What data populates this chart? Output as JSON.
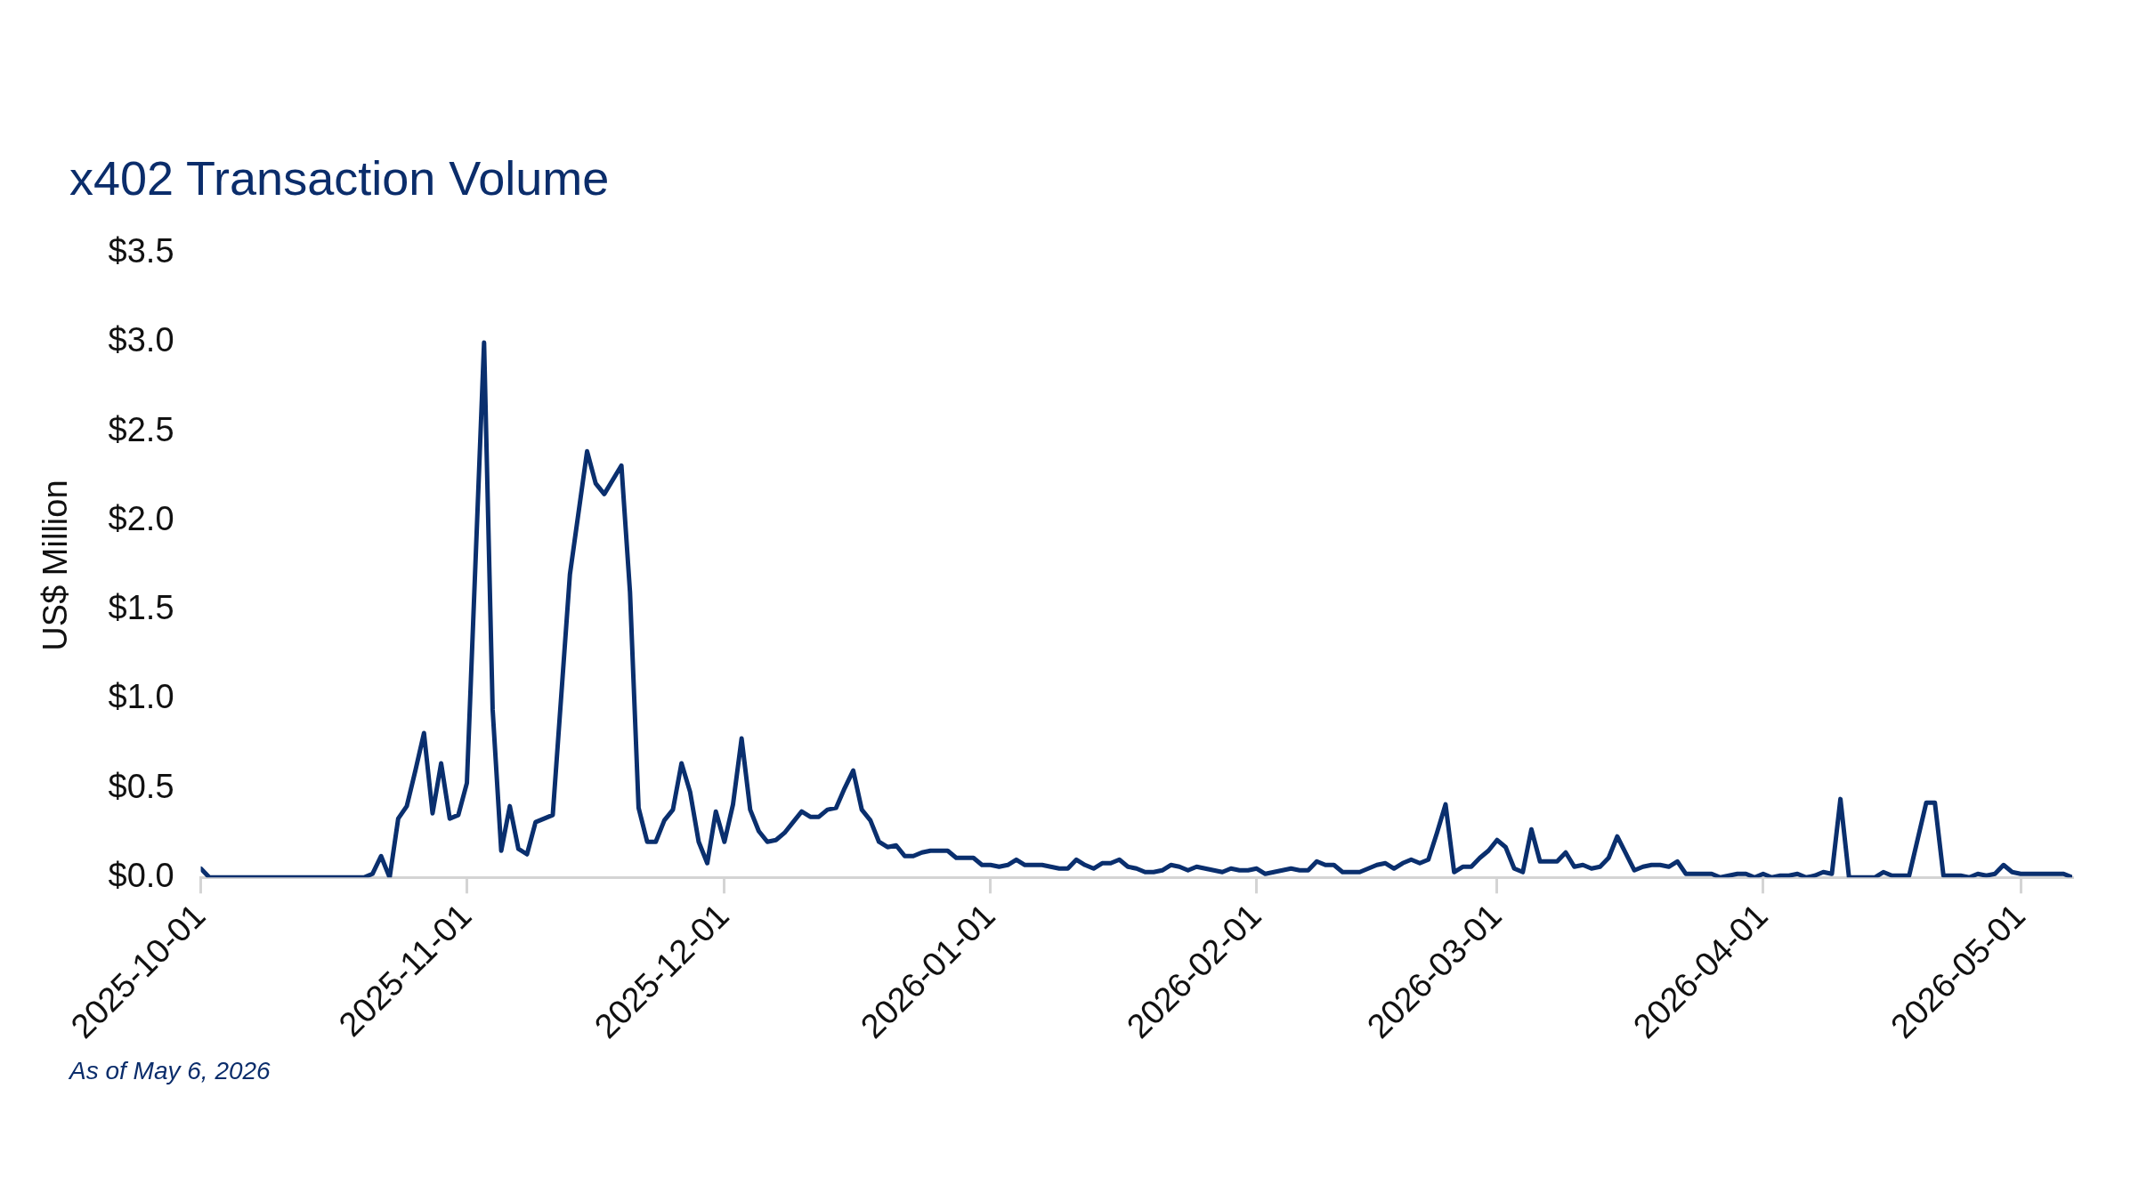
{
  "chart_data": {
    "type": "line",
    "title": "x402 Transaction Volume",
    "ylabel": "US$ Million",
    "marker": "none",
    "x": [
      "2025-10-01",
      "2025-10-02",
      "2025-10-20",
      "2025-10-21",
      "2025-10-22",
      "2025-10-23",
      "2025-10-24",
      "2025-10-25",
      "2025-10-26",
      "2025-10-27",
      "2025-10-28",
      "2025-10-29",
      "2025-10-30",
      "2025-10-31",
      "2025-11-01",
      "2025-11-03",
      "2025-11-04",
      "2025-11-05",
      "2025-11-06",
      "2025-11-07",
      "2025-11-08",
      "2025-11-09",
      "2025-11-10",
      "2025-11-11",
      "2025-11-13",
      "2025-11-15",
      "2025-11-16",
      "2025-11-17",
      "2025-11-19",
      "2025-11-20",
      "2025-11-21",
      "2025-11-22",
      "2025-11-23",
      "2025-11-24",
      "2025-11-25",
      "2025-11-26",
      "2025-11-27",
      "2025-11-28",
      "2025-11-29",
      "2025-11-30",
      "2025-12-01",
      "2025-12-02",
      "2025-12-03",
      "2025-12-04",
      "2025-12-05",
      "2025-12-06",
      "2025-12-07",
      "2025-12-08",
      "2025-12-09",
      "2025-12-10",
      "2025-12-11",
      "2025-12-12",
      "2025-12-13",
      "2025-12-14",
      "2025-12-15",
      "2025-12-16",
      "2025-12-17",
      "2025-12-18",
      "2025-12-19",
      "2025-12-20",
      "2025-12-21",
      "2025-12-22",
      "2025-12-23",
      "2025-12-24",
      "2025-12-25",
      "2025-12-27",
      "2025-12-28",
      "2025-12-30",
      "2025-12-31",
      "2026-01-01",
      "2026-01-02",
      "2026-01-03",
      "2026-01-04",
      "2026-01-05",
      "2026-01-07",
      "2026-01-08",
      "2026-01-09",
      "2026-01-10",
      "2026-01-11",
      "2026-01-12",
      "2026-01-13",
      "2026-01-14",
      "2026-01-15",
      "2026-01-16",
      "2026-01-17",
      "2026-01-18",
      "2026-01-19",
      "2026-01-20",
      "2026-01-21",
      "2026-01-22",
      "2026-01-23",
      "2026-01-24",
      "2026-01-25",
      "2026-01-26",
      "2026-01-27",
      "2026-01-28",
      "2026-01-29",
      "2026-01-30",
      "2026-01-31",
      "2026-02-01",
      "2026-02-02",
      "2026-02-03",
      "2026-02-04",
      "2026-02-05",
      "2026-02-06",
      "2026-02-07",
      "2026-02-08",
      "2026-02-09",
      "2026-02-10",
      "2026-02-11",
      "2026-02-13",
      "2026-02-14",
      "2026-02-15",
      "2026-02-16",
      "2026-02-17",
      "2026-02-18",
      "2026-02-19",
      "2026-02-20",
      "2026-02-21",
      "2026-02-22",
      "2026-02-23",
      "2026-02-24",
      "2026-02-25",
      "2026-02-26",
      "2026-02-27",
      "2026-02-28",
      "2026-03-01",
      "2026-03-02",
      "2026-03-03",
      "2026-03-04",
      "2026-03-05",
      "2026-03-06",
      "2026-03-08",
      "2026-03-09",
      "2026-03-10",
      "2026-03-11",
      "2026-03-12",
      "2026-03-13",
      "2026-03-14",
      "2026-03-15",
      "2026-03-17",
      "2026-03-18",
      "2026-03-19",
      "2026-03-20",
      "2026-03-21",
      "2026-03-22",
      "2026-03-23",
      "2026-03-26",
      "2026-03-27",
      "2026-03-28",
      "2026-03-29",
      "2026-03-30",
      "2026-03-31",
      "2026-04-01",
      "2026-04-02",
      "2026-04-03",
      "2026-04-04",
      "2026-04-05",
      "2026-04-06",
      "2026-04-07",
      "2026-04-08",
      "2026-04-09",
      "2026-04-10",
      "2026-04-11",
      "2026-04-14",
      "2026-04-15",
      "2026-04-16",
      "2026-04-18",
      "2026-04-20",
      "2026-04-21",
      "2026-04-22",
      "2026-04-24",
      "2026-04-25",
      "2026-04-26",
      "2026-04-27",
      "2026-04-28",
      "2026-04-29",
      "2026-04-30",
      "2026-05-01",
      "2026-05-06",
      "2026-05-07"
    ],
    "series": [
      {
        "color": "#0a2f6e",
        "values": [
          0.05,
          0,
          0,
          0.02,
          0.12,
          0,
          0.33,
          0.4,
          0.6,
          0.81,
          0.36,
          0.64,
          0.33,
          0.35,
          0.53,
          3.0,
          0.94,
          0.15,
          0.4,
          0.16,
          0.13,
          0.31,
          0.33,
          0.35,
          1.7,
          2.39,
          2.21,
          2.15,
          2.31,
          1.6,
          0.39,
          0.2,
          0.2,
          0.32,
          0.38,
          0.64,
          0.48,
          0.2,
          0.08,
          0.37,
          0.2,
          0.41,
          0.78,
          0.38,
          0.26,
          0.2,
          0.21,
          0.25,
          0.31,
          0.37,
          0.34,
          0.34,
          0.38,
          0.39,
          0.5,
          0.6,
          0.38,
          0.32,
          0.2,
          0.17,
          0.18,
          0.12,
          0.12,
          0.14,
          0.15,
          0.15,
          0.11,
          0.11,
          0.07,
          0.07,
          0.06,
          0.07,
          0.1,
          0.07,
          0.07,
          0.06,
          0.05,
          0.05,
          0.1,
          0.07,
          0.05,
          0.08,
          0.08,
          0.1,
          0.06,
          0.05,
          0.03,
          0.03,
          0.04,
          0.07,
          0.06,
          0.04,
          0.06,
          0.05,
          0.04,
          0.03,
          0.05,
          0.04,
          0.04,
          0.05,
          0.02,
          0.03,
          0.04,
          0.05,
          0.04,
          0.04,
          0.09,
          0.07,
          0.07,
          0.03,
          0.03,
          0.05,
          0.07,
          0.08,
          0.05,
          0.08,
          0.1,
          0.08,
          0.1,
          0.25,
          0.41,
          0.03,
          0.06,
          0.06,
          0.11,
          0.15,
          0.21,
          0.17,
          0.05,
          0.03,
          0.27,
          0.09,
          0.09,
          0.14,
          0.06,
          0.07,
          0.05,
          0.06,
          0.11,
          0.23,
          0.04,
          0.06,
          0.07,
          0.07,
          0.06,
          0.09,
          0.02,
          0.02,
          0,
          0.01,
          0.02,
          0.02,
          0,
          0.02,
          0,
          0.01,
          0.01,
          0.02,
          0,
          0.01,
          0.03,
          0.02,
          0.44,
          0,
          0,
          0.03,
          0.01,
          0.01,
          0.42,
          0.42,
          0.01,
          0.01,
          0,
          0.02,
          0.01,
          0.02,
          0.07,
          0.03,
          0.02,
          0.02,
          0
        ]
      }
    ],
    "xlim": [
      "2025-10-01",
      "2026-05-07"
    ],
    "xticks": [
      "2025-10-01",
      "2025-11-01",
      "2025-12-01",
      "2026-01-01",
      "2026-02-01",
      "2026-03-01",
      "2026-04-01",
      "2026-05-01"
    ],
    "ylim": [
      0,
      3.5
    ],
    "yticks": [
      {
        "value": 0,
        "label": "$0.0"
      },
      {
        "value": 0.5,
        "label": "$0.5"
      },
      {
        "value": 1,
        "label": "$1.0"
      },
      {
        "value": 1.5,
        "label": "$1.5"
      },
      {
        "value": 2,
        "label": "$2.0"
      },
      {
        "value": 2.5,
        "label": "$2.5"
      },
      {
        "value": 3,
        "label": "$3.0"
      },
      {
        "value": 3.5,
        "label": "$3.5"
      }
    ],
    "annotations": [
      "As of May 6, 2026"
    ]
  }
}
